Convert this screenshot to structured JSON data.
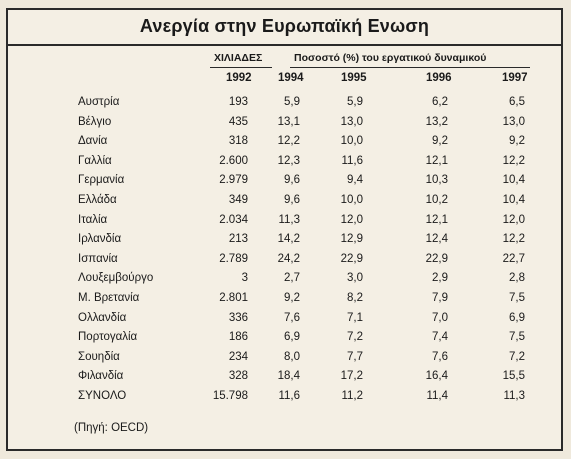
{
  "title": "Ανεργία στην Ευρωπαϊκή Ενωση",
  "header": {
    "thousands_label": "ΧΙΛΙΑΔΕΣ",
    "percent_label": "Ποσοστό (%) του εργατικού δυναμικού",
    "years": [
      "1992",
      "1994",
      "1995",
      "1996",
      "1997"
    ]
  },
  "rows": [
    {
      "country": "Αυστρία",
      "v": [
        "193",
        "5,9",
        "5,9",
        "6,2",
        "6,5"
      ]
    },
    {
      "country": "Βέλγιο",
      "v": [
        "435",
        "13,1",
        "13,0",
        "13,2",
        "13,0"
      ]
    },
    {
      "country": "Δανία",
      "v": [
        "318",
        "12,2",
        "10,0",
        "9,2",
        "9,2"
      ]
    },
    {
      "country": "Γαλλία",
      "v": [
        "2.600",
        "12,3",
        "11,6",
        "12,1",
        "12,2"
      ]
    },
    {
      "country": "Γερμανία",
      "v": [
        "2.979",
        "9,6",
        "9,4",
        "10,3",
        "10,4"
      ]
    },
    {
      "country": "Ελλάδα",
      "v": [
        "349",
        "9,6",
        "10,0",
        "10,2",
        "10,4"
      ]
    },
    {
      "country": "Ιταλία",
      "v": [
        "2.034",
        "11,3",
        "12,0",
        "12,1",
        "12,0"
      ]
    },
    {
      "country": "Ιρλανδία",
      "v": [
        "213",
        "14,2",
        "12,9",
        "12,4",
        "12,2"
      ]
    },
    {
      "country": "Ισπανία",
      "v": [
        "2.789",
        "24,2",
        "22,9",
        "22,9",
        "22,7"
      ]
    },
    {
      "country": "Λουξεμβούργο",
      "v": [
        "3",
        "2,7",
        "3,0",
        "2,9",
        "2,8"
      ]
    },
    {
      "country": "Μ. Βρετανία",
      "v": [
        "2.801",
        "9,2",
        "8,2",
        "7,9",
        "7,5"
      ]
    },
    {
      "country": "Ολλανδία",
      "v": [
        "336",
        "7,6",
        "7,1",
        "7,0",
        "6,9"
      ]
    },
    {
      "country": "Πορτογαλία",
      "v": [
        "186",
        "6,9",
        "7,2",
        "7,4",
        "7,5"
      ]
    },
    {
      "country": "Σουηδία",
      "v": [
        "234",
        "8,0",
        "7,7",
        "7,6",
        "7,2"
      ]
    },
    {
      "country": "Φιλανδία",
      "v": [
        "328",
        "18,4",
        "17,2",
        "16,4",
        "15,5"
      ]
    },
    {
      "country": "ΣΥΝΟΛΟ",
      "v": [
        "15.798",
        "11,6",
        "11,2",
        "11,4",
        "11,3"
      ]
    }
  ],
  "source": "(Πηγή: OECD)"
}
